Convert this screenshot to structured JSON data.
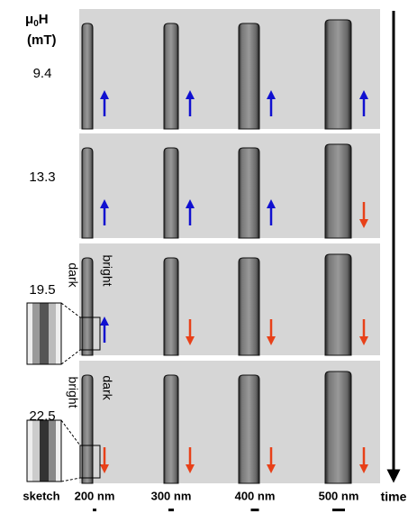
{
  "header": {
    "symbol": "μ",
    "subscript": "0",
    "quantity": "H",
    "unit": "(mT)"
  },
  "rows": [
    {
      "field": "9.4"
    },
    {
      "field": "13.3"
    },
    {
      "field": "19.5",
      "left_label": "dark",
      "right_label": "bright"
    },
    {
      "field": "22.5",
      "left_label": "bright",
      "right_label": "dark"
    }
  ],
  "footer": {
    "sketch": "sketch",
    "widths": [
      "200 nm",
      "300 nm",
      "400 nm",
      "500 nm"
    ],
    "time": "time"
  }
}
